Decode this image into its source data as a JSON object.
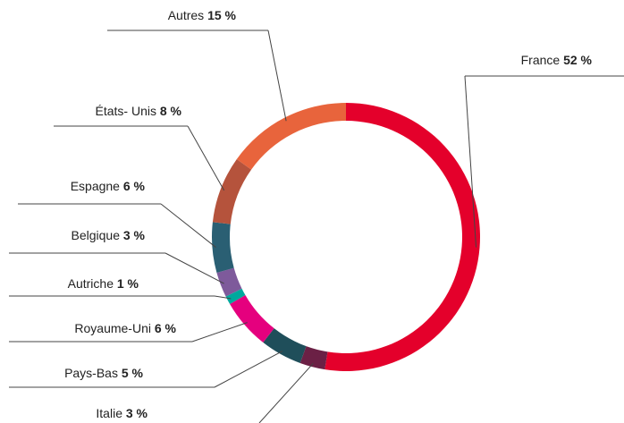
{
  "chart_data": {
    "type": "donut",
    "categories": [
      "France",
      "Italie",
      "Pays-Bas",
      "Royaume-Uni",
      "Autriche",
      "Belgique",
      "Espagne",
      "États- Unis",
      "Autres"
    ],
    "values": [
      52,
      3,
      5,
      6,
      1,
      3,
      6,
      8,
      15
    ],
    "value_labels": [
      "52 %",
      "3 %",
      "5 %",
      "6 %",
      "1 %",
      "3 %",
      "6 %",
      "8 %",
      "15 %"
    ],
    "colors": [
      "#e4002b",
      "#6b2045",
      "#1f4e5a",
      "#e5007e",
      "#00a99d",
      "#7e5a9b",
      "#2a5f73",
      "#b5533c",
      "#e8643c"
    ]
  }
}
